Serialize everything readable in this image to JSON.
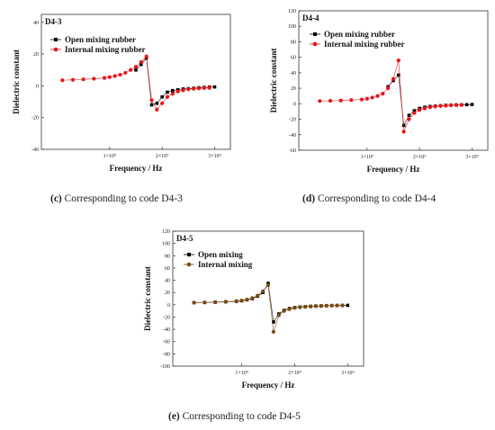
{
  "chart_data": [
    {
      "type": "line",
      "panel_label": "D4-3",
      "xlabel": "Frequency / Hz",
      "ylabel": "Dielectric constant",
      "x_ticks": [
        {
          "value": 1000000000,
          "label": "1×10⁹"
        },
        {
          "value": 2000000000,
          "label": "2×10⁹"
        },
        {
          "value": 3000000000,
          "label": "3×10⁹"
        }
      ],
      "xlim": [
        -300000000,
        3300000000
      ],
      "y_ticks": [
        {
          "value": -40,
          "label": "-40"
        },
        {
          "value": -20,
          "label": "-20"
        },
        {
          "value": 0,
          "label": "0"
        },
        {
          "value": 20,
          "label": "20"
        },
        {
          "value": 40,
          "label": "40"
        }
      ],
      "ylim": [
        -40,
        45
      ],
      "legend": "top-left",
      "series": [
        {
          "name": "Open mixing rubber",
          "color": "#000000",
          "marker": "square",
          "x": [
            1500000000,
            1600000000,
            1700000000,
            1800000000,
            1900000000,
            2000000000,
            2100000000,
            2200000000,
            2300000000,
            2400000000,
            2500000000,
            2600000000,
            2700000000,
            2800000000,
            2900000000,
            3000000000
          ],
          "y": [
            10,
            13.5,
            17.5,
            -12,
            -11,
            -7,
            -4,
            -3,
            -2.5,
            -2,
            -1.8,
            -1.5,
            -1.2,
            -1,
            -0.8,
            -0.7
          ]
        },
        {
          "name": "Internal mixing rubber",
          "color": "#e8141a",
          "marker": "circle",
          "x": [
            100000000,
            300000000,
            500000000,
            700000000,
            900000000,
            1000000000,
            1100000000,
            1200000000,
            1300000000,
            1400000000,
            1500000000,
            1600000000,
            1700000000,
            1800000000,
            1900000000,
            2000000000,
            2100000000,
            2200000000,
            2300000000,
            2400000000,
            2500000000,
            2600000000,
            2700000000,
            2800000000,
            2900000000
          ],
          "y": [
            3.5,
            3.8,
            4.1,
            4.5,
            5,
            5.5,
            6.2,
            7,
            8.2,
            10,
            12,
            15,
            18.5,
            -9,
            -15,
            -11,
            -7,
            -5,
            -3.5,
            -2.8,
            -2.2,
            -1.8,
            -1.6,
            -1.4,
            -1.3
          ]
        }
      ]
    },
    {
      "type": "line",
      "panel_label": "D4-4",
      "xlabel": "Frequency / Hz",
      "ylabel": "Dielectric constant",
      "x_ticks": [
        {
          "value": 1000000000,
          "label": "1×10⁹"
        },
        {
          "value": 2000000000,
          "label": "2×10⁹"
        },
        {
          "value": 3000000000,
          "label": "3×10⁹"
        }
      ],
      "xlim": [
        -300000000,
        3300000000
      ],
      "y_ticks": [
        {
          "value": -60,
          "label": "-60"
        },
        {
          "value": -40,
          "label": "-40"
        },
        {
          "value": -20,
          "label": "-20"
        },
        {
          "value": 0,
          "label": "0"
        },
        {
          "value": 20,
          "label": "20"
        },
        {
          "value": 40,
          "label": "40"
        },
        {
          "value": 60,
          "label": "60"
        },
        {
          "value": 80,
          "label": "80"
        },
        {
          "value": 100,
          "label": "100"
        },
        {
          "value": 120,
          "label": "120"
        }
      ],
      "ylim": [
        -60,
        120
      ],
      "legend": "top-left",
      "series": [
        {
          "name": "Open mixing rubber",
          "color": "#000000",
          "marker": "square",
          "x": [
            1400000000,
            1500000000,
            1600000000,
            1700000000,
            1800000000,
            1900000000,
            2000000000,
            2100000000,
            2200000000,
            2300000000,
            2400000000,
            2500000000,
            2600000000,
            2700000000,
            2800000000,
            2900000000,
            3000000000
          ],
          "y": [
            22,
            30,
            37,
            -28,
            -15,
            -9,
            -6,
            -4.5,
            -3.5,
            -3,
            -2.5,
            -2,
            -1.8,
            -1.5,
            -1.3,
            -1.2,
            -1
          ]
        },
        {
          "name": "Internal mixing rubber",
          "color": "#e8141a",
          "marker": "circle",
          "x": [
            100000000,
            300000000,
            500000000,
            700000000,
            900000000,
            1000000000,
            1100000000,
            1200000000,
            1300000000,
            1400000000,
            1500000000,
            1600000000,
            1700000000,
            1800000000,
            1900000000,
            2000000000,
            2100000000,
            2200000000,
            2300000000,
            2400000000,
            2500000000,
            2600000000,
            2700000000,
            2800000000
          ],
          "y": [
            3.5,
            3.8,
            4.2,
            4.8,
            5.5,
            6.5,
            8,
            10,
            13,
            20,
            32,
            56,
            -36,
            -20,
            -12,
            -8,
            -6,
            -4.5,
            -3.5,
            -3,
            -2.5,
            -2,
            -1.8,
            -1.6
          ]
        }
      ]
    },
    {
      "type": "line",
      "panel_label": "D4-5",
      "xlabel": "Frequency / Hz",
      "ylabel": "Dielectric constant",
      "x_ticks": [
        {
          "value": 1000000000,
          "label": "1×10⁹"
        },
        {
          "value": 2000000000,
          "label": "2×10⁹"
        },
        {
          "value": 3000000000,
          "label": "3×10⁹"
        }
      ],
      "xlim": [
        -300000000,
        3300000000
      ],
      "y_ticks": [
        {
          "value": -100,
          "label": "-100"
        },
        {
          "value": -80,
          "label": "-80"
        },
        {
          "value": -60,
          "label": "-60"
        },
        {
          "value": -40,
          "label": "-40"
        },
        {
          "value": -20,
          "label": "-20"
        },
        {
          "value": 0,
          "label": "0"
        },
        {
          "value": 20,
          "label": "20"
        },
        {
          "value": 40,
          "label": "40"
        },
        {
          "value": 60,
          "label": "60"
        },
        {
          "value": 80,
          "label": "80"
        },
        {
          "value": 100,
          "label": "100"
        },
        {
          "value": 120,
          "label": "120"
        }
      ],
      "ylim": [
        -100,
        120
      ],
      "legend": "top-left",
      "series": [
        {
          "name": "Open mixing",
          "color": "#000000",
          "marker": "square",
          "x": [
            100000000,
            300000000,
            500000000,
            700000000,
            900000000,
            1000000000,
            1100000000,
            1200000000,
            1300000000,
            1400000000,
            1500000000,
            1600000000,
            1700000000,
            1800000000,
            1900000000,
            2000000000,
            2100000000,
            2200000000,
            2300000000,
            2400000000,
            2500000000,
            2600000000,
            2700000000,
            2800000000,
            2900000000,
            3000000000
          ],
          "y": [
            3.5,
            3.8,
            4.2,
            4.8,
            5.5,
            6.5,
            8,
            10,
            14,
            20,
            35,
            -28,
            -15,
            -9,
            -6,
            -4.5,
            -3.5,
            -3,
            -2.5,
            -2,
            -1.8,
            -1.5,
            -1.3,
            -1.2,
            -1,
            -0.9
          ]
        },
        {
          "name": "Internal mixing",
          "color": "#7a4a10",
          "marker": "circle",
          "x": [
            100000000,
            300000000,
            500000000,
            700000000,
            900000000,
            1000000000,
            1100000000,
            1200000000,
            1300000000,
            1400000000,
            1500000000,
            1600000000,
            1700000000,
            1800000000,
            1900000000,
            2000000000,
            2100000000,
            2200000000,
            2300000000,
            2400000000,
            2500000000,
            2600000000,
            2700000000,
            2800000000,
            2900000000
          ],
          "y": [
            3.5,
            3.8,
            4.3,
            5,
            6,
            7,
            8.5,
            11,
            15,
            22,
            32,
            -44,
            -17,
            -10,
            -7,
            -5,
            -4,
            -3.2,
            -2.6,
            -2.2,
            -1.9,
            -1.6,
            -1.4,
            -1.2,
            -1.1
          ]
        }
      ]
    }
  ],
  "captions": [
    {
      "code": "(c)",
      "text": " Corresponding to code D4-3"
    },
    {
      "code": "(d)",
      "text": " Corresponding to code D4-4"
    },
    {
      "code": "(e)",
      "text": " Corresponding to code D4-5"
    }
  ]
}
